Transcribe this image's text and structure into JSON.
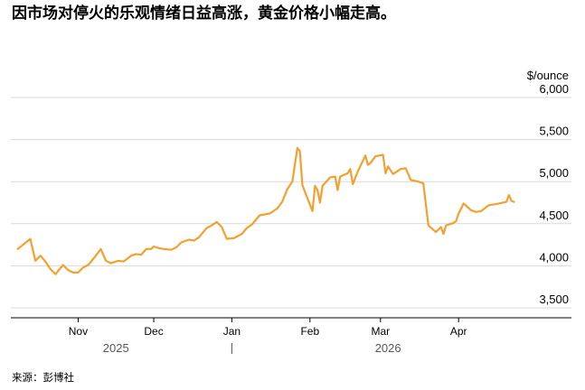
{
  "title": "因市场对停火的乐观情绪日益高涨，黄金价格小幅走高。",
  "source": "来源：彭博社",
  "chart_data": {
    "type": "line",
    "unit_label": "$/ounce",
    "ylim": [
      3300,
      6000
    ],
    "y_ticks": [
      {
        "value": 3500,
        "label": "3,500"
      },
      {
        "value": 4000,
        "label": "4,000"
      },
      {
        "value": 4500,
        "label": "4,500"
      },
      {
        "value": 5000,
        "label": "5,000"
      },
      {
        "value": 5500,
        "label": "5,500"
      },
      {
        "value": 6000,
        "label": "6,000"
      }
    ],
    "x_range": [
      "2025-10-06",
      "2026-04-30"
    ],
    "x_ticks": [
      {
        "date": "2025-11-01",
        "label": "Nov"
      },
      {
        "date": "2025-12-01",
        "label": "Dec"
      },
      {
        "date": "2026-01-01",
        "label": "Jan"
      },
      {
        "date": "2026-02-01",
        "label": "Feb"
      },
      {
        "date": "2026-03-01",
        "label": "Mar"
      },
      {
        "date": "2026-04-01",
        "label": "Apr"
      }
    ],
    "years": [
      {
        "label": "2025",
        "anchor": "2025-11-16"
      },
      {
        "label": "2026",
        "anchor": "2026-03-04"
      }
    ],
    "year_divider": "2026-01-01",
    "line_color": "#f2a130",
    "grid": true,
    "series": [
      {
        "x": [
          "2025-10-08",
          "2025-10-13",
          "2025-10-15",
          "2025-10-17",
          "2025-10-19",
          "2025-10-21",
          "2025-10-23",
          "2025-10-26",
          "2025-10-28",
          "2025-10-30",
          "2025-11-01",
          "2025-11-03",
          "2025-11-05",
          "2025-11-08",
          "2025-11-10",
          "2025-11-12",
          "2025-11-14",
          "2025-11-17",
          "2025-11-19",
          "2025-11-22",
          "2025-11-24",
          "2025-11-26",
          "2025-11-28",
          "2025-11-30",
          "2025-12-01",
          "2025-12-03",
          "2025-12-05",
          "2025-12-08",
          "2025-12-10",
          "2025-12-12",
          "2025-12-15",
          "2025-12-17",
          "2025-12-19",
          "2025-12-22",
          "2025-12-24",
          "2025-12-26",
          "2025-12-28",
          "2025-12-30",
          "2026-01-02",
          "2026-01-05",
          "2026-01-07",
          "2026-01-09",
          "2026-01-12",
          "2026-01-14",
          "2026-01-16",
          "2026-01-19",
          "2026-01-21",
          "2026-01-23",
          "2026-01-25",
          "2026-01-27",
          "2026-01-28",
          "2026-01-29",
          "2026-01-30",
          "2026-02-02",
          "2026-02-03",
          "2026-02-04",
          "2026-02-05",
          "2026-02-06",
          "2026-02-09",
          "2026-02-11",
          "2026-02-12",
          "2026-02-13",
          "2026-02-16",
          "2026-02-17",
          "2026-02-18",
          "2026-02-20",
          "2026-02-23",
          "2026-02-24",
          "2026-02-25",
          "2026-02-27",
          "2026-03-02",
          "2026-03-03",
          "2026-03-04",
          "2026-03-06",
          "2026-03-09",
          "2026-03-11",
          "2026-03-13",
          "2026-03-16",
          "2026-03-18",
          "2026-03-20",
          "2026-03-23",
          "2026-03-25",
          "2026-03-26",
          "2026-03-27",
          "2026-03-30",
          "2026-03-31",
          "2026-04-01",
          "2026-04-03",
          "2026-04-06",
          "2026-04-08",
          "2026-04-10",
          "2026-04-13",
          "2026-04-15",
          "2026-04-17",
          "2026-04-20",
          "2026-04-21",
          "2026-04-22",
          "2026-04-23"
        ],
        "y": [
          4200,
          4320,
          4060,
          4120,
          4050,
          3960,
          3900,
          4010,
          3950,
          3920,
          3920,
          3980,
          4010,
          4120,
          4200,
          4060,
          4030,
          4060,
          4050,
          4120,
          4140,
          4130,
          4200,
          4200,
          4230,
          4210,
          4200,
          4190,
          4220,
          4280,
          4310,
          4300,
          4340,
          4450,
          4480,
          4520,
          4460,
          4320,
          4330,
          4380,
          4450,
          4490,
          4600,
          4610,
          4620,
          4680,
          4760,
          4910,
          5000,
          5400,
          5360,
          4960,
          4880,
          4650,
          4950,
          4900,
          4750,
          4950,
          5050,
          5060,
          4900,
          5060,
          5100,
          5150,
          4970,
          5120,
          5310,
          5200,
          5220,
          5300,
          5320,
          5100,
          5180,
          5090,
          5150,
          5160,
          5020,
          5000,
          4980,
          4480,
          4400,
          4460,
          4380,
          4480,
          4510,
          4530,
          4620,
          4740,
          4660,
          4640,
          4650,
          4720,
          4730,
          4740,
          4760,
          4840,
          4770,
          4760
        ]
      }
    ]
  }
}
